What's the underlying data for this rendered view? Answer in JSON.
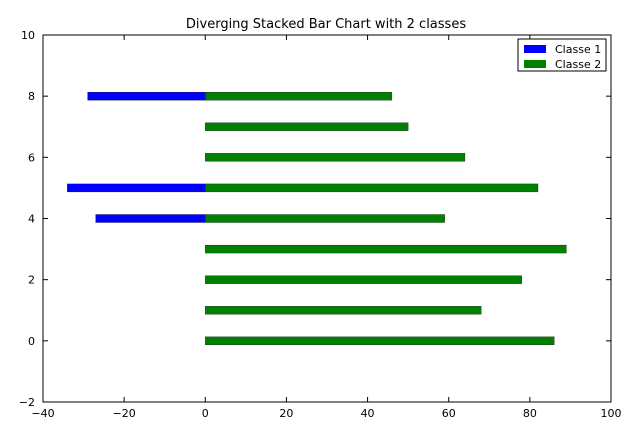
{
  "chart_data": {
    "type": "bar",
    "orientation": "horizontal",
    "stacked": "diverging",
    "title": "Diverging Stacked Bar Chart with 2 classes",
    "xlabel": "",
    "ylabel": "",
    "xlim": [
      -40,
      100
    ],
    "ylim": [
      -2,
      10
    ],
    "xticks": [
      -40,
      -20,
      0,
      20,
      40,
      60,
      80,
      100
    ],
    "yticks": [
      -2,
      0,
      2,
      4,
      6,
      8,
      10
    ],
    "grid": false,
    "legend_position": "top-right",
    "y": [
      0,
      1,
      2,
      3,
      4,
      5,
      6,
      7,
      8
    ],
    "series": [
      {
        "name": "Classe 1",
        "color": "#0000ff",
        "values": [
          0,
          0,
          0,
          0,
          -27,
          -34,
          0,
          0,
          -29
        ]
      },
      {
        "name": "Classe 2",
        "color": "#008000",
        "values": [
          86,
          68,
          78,
          89,
          59,
          82,
          64,
          50,
          46
        ]
      }
    ]
  }
}
